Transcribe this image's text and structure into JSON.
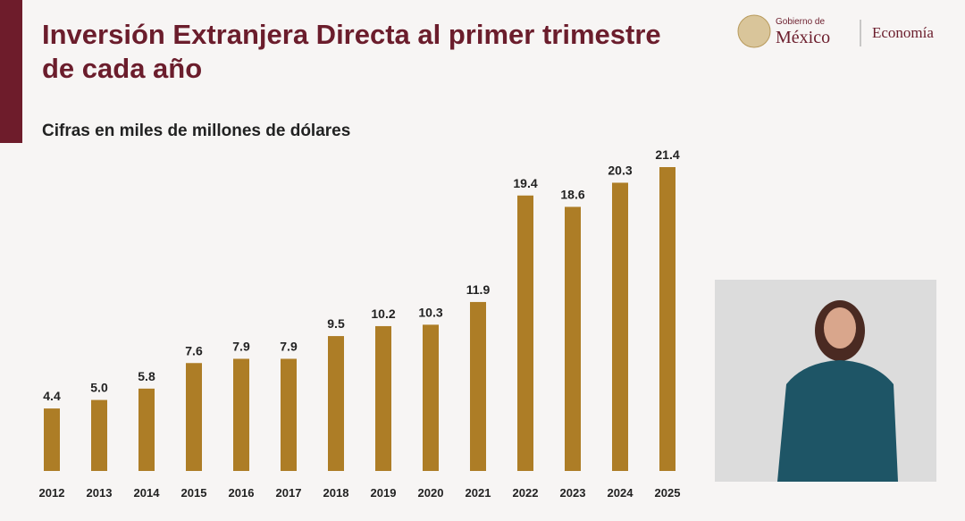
{
  "chart_data": {
    "type": "bar",
    "title": "Inversión Extranjera Directa al primer trimestre de cada año",
    "subtitle": "Cifras en miles de millones de dólares",
    "categories": [
      "2012",
      "2013",
      "2014",
      "2015",
      "2016",
      "2017",
      "2018",
      "2019",
      "2020",
      "2021",
      "2022",
      "2023",
      "2024",
      "2025"
    ],
    "values": [
      4.4,
      5.0,
      5.8,
      7.6,
      7.9,
      7.9,
      9.5,
      10.2,
      10.3,
      11.9,
      19.4,
      18.6,
      20.3,
      21.4
    ],
    "value_labels": [
      "4.4",
      "5.0",
      "5.8",
      "7.6",
      "7.9",
      "7.9",
      "9.5",
      "10.2",
      "10.3",
      "11.9",
      "19.4",
      "18.6",
      "20.3",
      "21.4"
    ],
    "color": "#ad7d26"
  },
  "header": {
    "logo_top": "Gobierno de",
    "logo_main": "México",
    "ministry": "Economía"
  }
}
